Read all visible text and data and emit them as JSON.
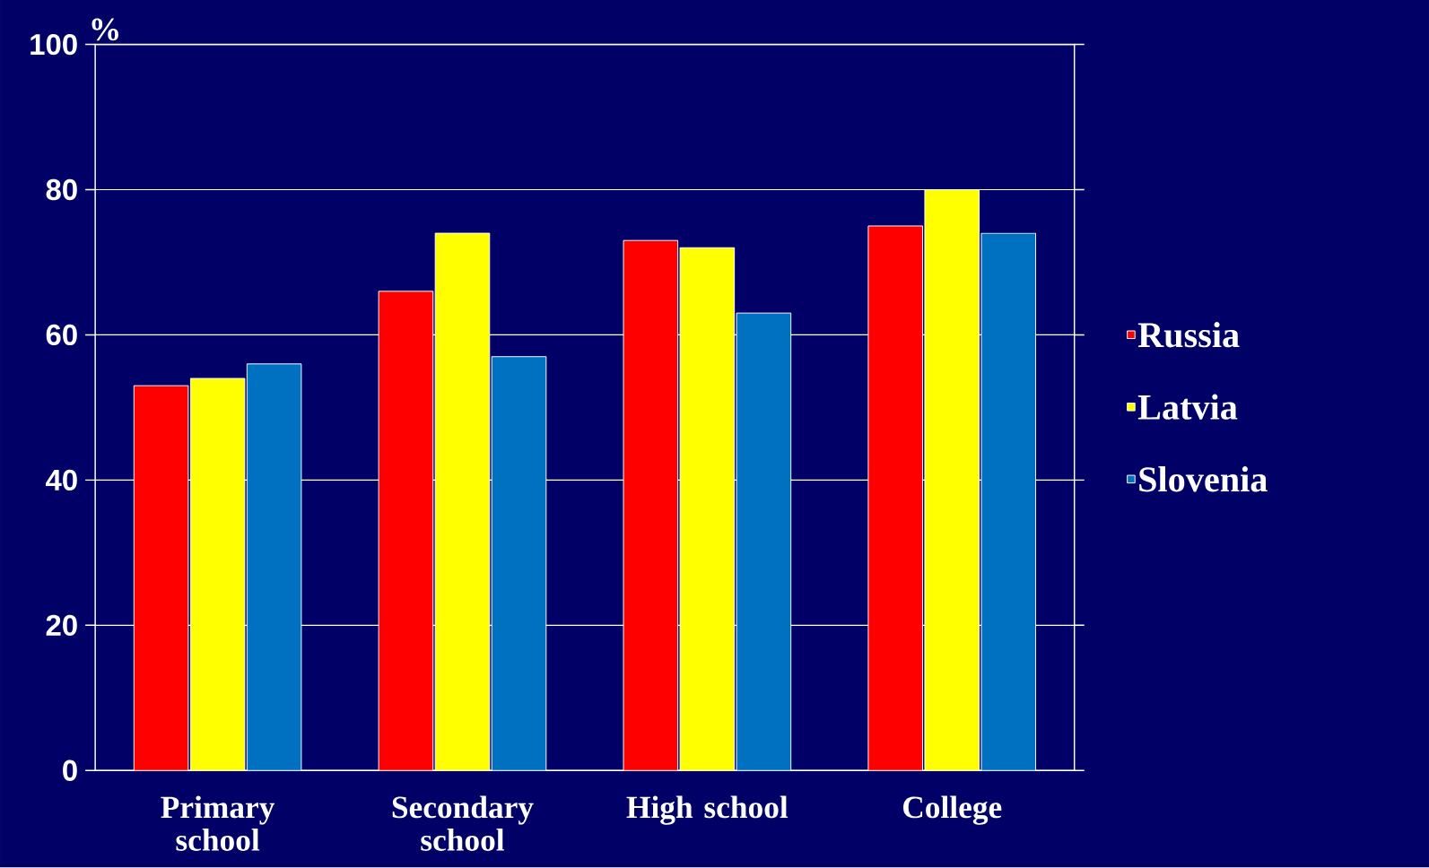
{
  "chart_data": {
    "type": "bar",
    "ylabel": "%",
    "categories": [
      "Primary school",
      "Secondary school",
      "High school",
      "College"
    ],
    "series": [
      {
        "name": "Russia",
        "color": "#ff0000",
        "values": [
          53,
          66,
          73,
          75
        ]
      },
      {
        "name": "Latvia",
        "color": "#ffff00",
        "values": [
          54,
          74,
          72,
          80
        ]
      },
      {
        "name": "Slovenia",
        "color": "#0070c0",
        "values": [
          56,
          57,
          63,
          74
        ]
      }
    ],
    "ylim": [
      0,
      100
    ],
    "yticks": [
      0,
      20,
      40,
      60,
      80,
      100
    ],
    "grid": "y",
    "legend": "right"
  }
}
